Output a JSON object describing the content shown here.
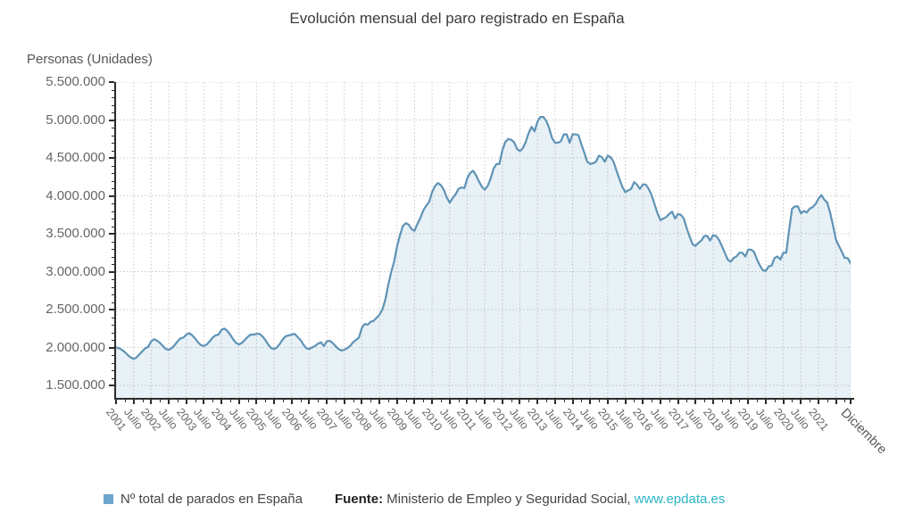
{
  "title": "Evolución mensual del paro registrado en España",
  "y_axis": {
    "title": "Personas (Unidades)",
    "tick_labels": [
      "5.500.000",
      "5.000.000",
      "4.500.000",
      "4.000.000",
      "3.500.000",
      "3.000.000",
      "2.500.000",
      "2.000.000",
      "1.500.000"
    ]
  },
  "x_axis": {
    "labels": [
      "2001",
      "Julio",
      "2002",
      "Julio",
      "2003",
      "Julio",
      "2004",
      "Julio",
      "2005",
      "Julio",
      "2006",
      "Julio",
      "2007",
      "Julio",
      "2008",
      "Julio",
      "2009",
      "Julio",
      "2010",
      "Julio",
      "2011",
      "Julio",
      "2012",
      "Julio",
      "2013",
      "Julio",
      "2014",
      "Julio",
      "2015",
      "Julio",
      "2016",
      "Julio",
      "2017",
      "Julio",
      "2018",
      "Julio",
      "2019",
      "Julio",
      "2020",
      "Julio",
      "2021",
      "Diciembre"
    ]
  },
  "legend": {
    "label": "Nº total de parados en España",
    "marker_icon": "square",
    "marker_color": "#6ea7cd"
  },
  "source": {
    "label": "Fuente:",
    "text": "Ministerio de Empleo y Seguridad Social,",
    "link_text": "www.epdata.es",
    "link_color": "#2cb5c4"
  },
  "colors": {
    "line": "#5f93b6",
    "area_fill": "rgba(111,165,201,0.16)",
    "grid": "#c9c9c9",
    "axis": "#2d2d2d",
    "tick_text": "#666666"
  },
  "chart_data": {
    "type": "area",
    "title": "Evolución mensual del paro registrado en España",
    "xlabel": "",
    "ylabel": "Personas (Unidades)",
    "ylim": [
      1500000,
      5500000
    ],
    "y_tick_step": 500000,
    "grid": true,
    "legend_position": "bottom",
    "x_tick_labels": [
      "2001",
      "Julio",
      "2002",
      "Julio",
      "2003",
      "Julio",
      "2004",
      "Julio",
      "2005",
      "Julio",
      "2006",
      "Julio",
      "2007",
      "Julio",
      "2008",
      "Julio",
      "2009",
      "Julio",
      "2010",
      "Julio",
      "2011",
      "Julio",
      "2012",
      "Julio",
      "2013",
      "Julio",
      "2014",
      "Julio",
      "2015",
      "Julio",
      "2016",
      "Julio",
      "2017",
      "Julio",
      "2018",
      "Julio",
      "2019",
      "Julio",
      "2020",
      "Julio",
      "2021",
      "Diciembre"
    ],
    "series": [
      {
        "name": "Nº total de parados en España",
        "start": "2001-01",
        "frequency": "monthly",
        "unit": "personas",
        "values": [
          2000000,
          1990000,
          1970000,
          1940000,
          1900000,
          1870000,
          1850000,
          1870000,
          1910000,
          1950000,
          1990000,
          2010000,
          2080000,
          2110000,
          2090000,
          2060000,
          2020000,
          1980000,
          1970000,
          1990000,
          2030000,
          2080000,
          2120000,
          2130000,
          2170000,
          2190000,
          2160000,
          2120000,
          2070000,
          2030000,
          2020000,
          2040000,
          2080000,
          2130000,
          2160000,
          2170000,
          2230000,
          2250000,
          2220000,
          2170000,
          2110000,
          2060000,
          2040000,
          2060000,
          2100000,
          2140000,
          2170000,
          2170000,
          2180000,
          2180000,
          2150000,
          2100000,
          2040000,
          1990000,
          1980000,
          2000000,
          2050000,
          2110000,
          2150000,
          2160000,
          2170000,
          2180000,
          2140000,
          2100000,
          2040000,
          1990000,
          1980000,
          2000000,
          2020000,
          2050000,
          2070000,
          2020000,
          2080000,
          2090000,
          2060000,
          2020000,
          1980000,
          1960000,
          1970000,
          1990000,
          2020000,
          2070000,
          2100000,
          2130000,
          2260000,
          2310000,
          2300000,
          2340000,
          2350000,
          2390000,
          2430000,
          2500000,
          2630000,
          2820000,
          2990000,
          3130000,
          3330000,
          3480000,
          3600000,
          3640000,
          3620000,
          3560000,
          3540000,
          3630000,
          3710000,
          3810000,
          3870000,
          3920000,
          4050000,
          4130000,
          4170000,
          4140000,
          4080000,
          3980000,
          3910000,
          3970000,
          4020000,
          4090000,
          4110000,
          4100000,
          4230000,
          4300000,
          4330000,
          4270000,
          4190000,
          4120000,
          4080000,
          4130000,
          4230000,
          4360000,
          4420000,
          4420000,
          4600000,
          4710000,
          4750000,
          4740000,
          4710000,
          4620000,
          4590000,
          4630000,
          4710000,
          4830000,
          4910000,
          4850000,
          4980000,
          5040000,
          5040000,
          4990000,
          4890000,
          4760000,
          4700000,
          4700000,
          4720000,
          4810000,
          4810000,
          4700000,
          4810000,
          4810000,
          4800000,
          4680000,
          4570000,
          4450000,
          4420000,
          4430000,
          4450000,
          4530000,
          4510000,
          4450000,
          4530000,
          4510000,
          4450000,
          4330000,
          4220000,
          4120000,
          4050000,
          4070000,
          4090000,
          4180000,
          4150000,
          4090000,
          4150000,
          4150000,
          4090000,
          4010000,
          3890000,
          3770000,
          3680000,
          3700000,
          3720000,
          3760000,
          3790000,
          3700000,
          3760000,
          3750000,
          3700000,
          3570000,
          3460000,
          3360000,
          3340000,
          3380000,
          3410000,
          3470000,
          3470000,
          3410000,
          3480000,
          3470000,
          3420000,
          3340000,
          3250000,
          3160000,
          3130000,
          3180000,
          3200000,
          3250000,
          3250000,
          3200000,
          3290000,
          3290000,
          3260000,
          3160000,
          3080000,
          3020000,
          3010000,
          3070000,
          3080000,
          3180000,
          3200000,
          3160000,
          3250000,
          3250000,
          3550000,
          3830000,
          3860000,
          3860000,
          3770000,
          3800000,
          3780000,
          3830000,
          3850000,
          3890000,
          3960000,
          4010000,
          3950000,
          3910000,
          3780000,
          3610000,
          3420000,
          3340000,
          3260000,
          3180000,
          3180000,
          3110000
        ]
      }
    ]
  }
}
